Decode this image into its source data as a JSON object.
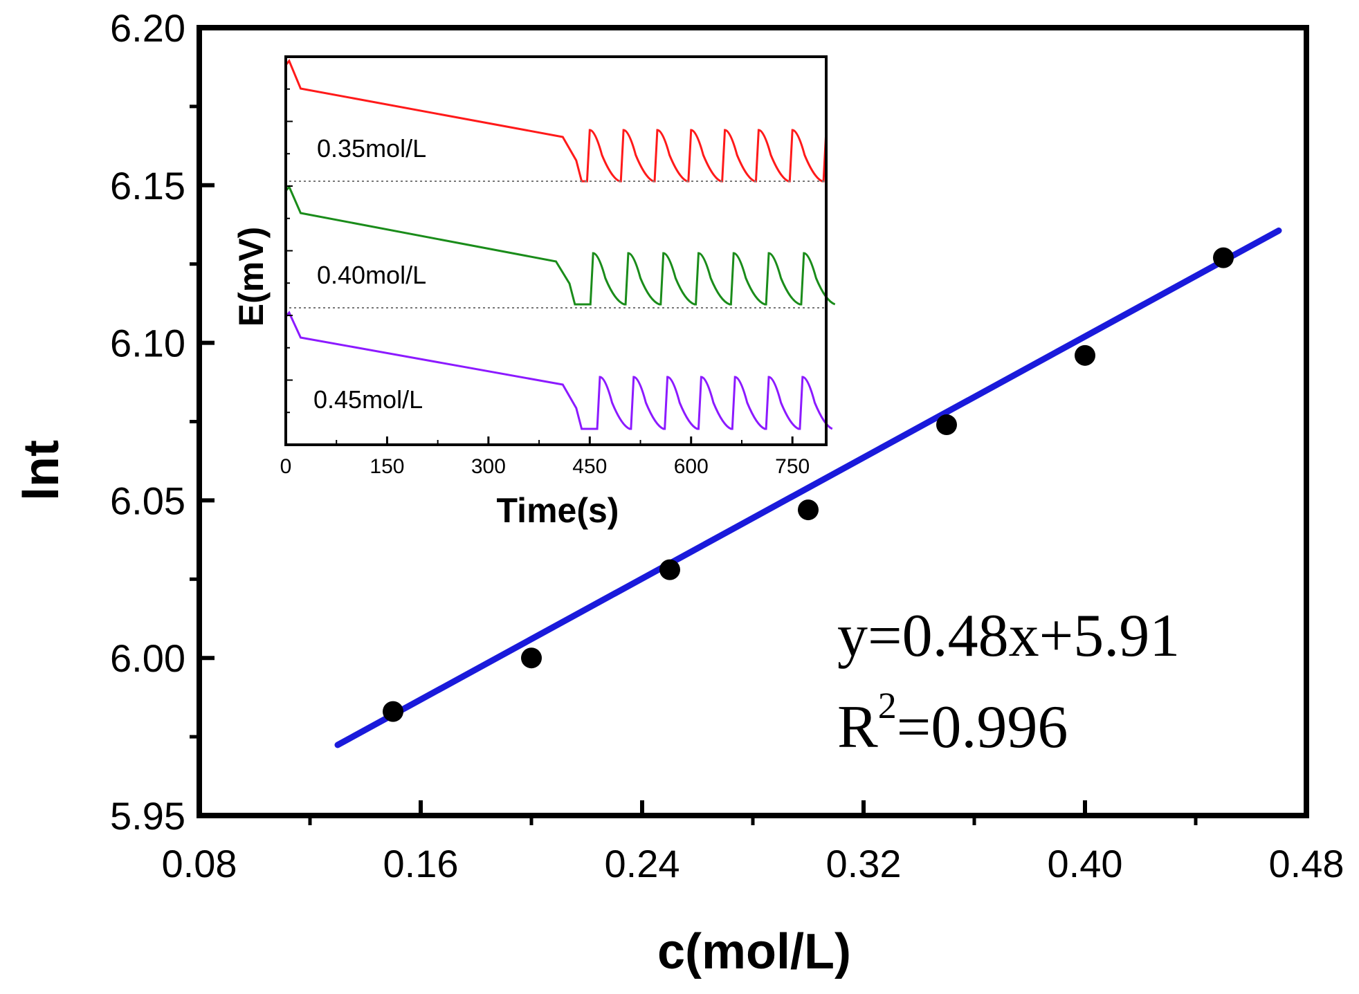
{
  "chart_data": [
    {
      "type": "scatter",
      "xlabel": "c(mol/L)",
      "ylabel": "lnt",
      "xlim": [
        0.08,
        0.48
      ],
      "ylim": [
        5.95,
        6.2
      ],
      "xticks": [
        "0.08",
        "0.16",
        "0.24",
        "0.32",
        "0.40",
        "0.48"
      ],
      "yticks": [
        "5.95",
        "6.00",
        "6.05",
        "6.10",
        "6.15",
        "6.20"
      ],
      "points": {
        "x": [
          0.15,
          0.2,
          0.25,
          0.3,
          0.35,
          0.4,
          0.45
        ],
        "y": [
          5.983,
          6.0,
          6.028,
          6.047,
          6.074,
          6.096,
          6.127
        ]
      },
      "fit": {
        "slope": 0.48,
        "intercept": 5.91,
        "x_range": [
          0.13,
          0.47
        ],
        "color": "#1a1adb"
      },
      "annotations": {
        "equation": "y=0.48x+5.91",
        "r2_prefix": "R",
        "r2_sup": "2",
        "r2_value": "=0.996"
      },
      "point_color": "#000000"
    },
    {
      "type": "line",
      "inset": true,
      "xlabel": "Time(s)",
      "ylabel": "E(mV)",
      "xlim": [
        0,
        800
      ],
      "xticks": [
        "0",
        "150",
        "300",
        "450",
        "600",
        "750"
      ],
      "series": [
        {
          "name": "0.35mol/L",
          "color": "#ff1a1a",
          "onset": 430,
          "first_peak": 450,
          "period": 50
        },
        {
          "name": "0.40mol/L",
          "color": "#1a8c1a",
          "onset": 420,
          "first_peak": 455,
          "period": 52
        },
        {
          "name": "0.45mol/L",
          "color": "#8c1aff",
          "onset": 430,
          "first_peak": 465,
          "period": 50
        }
      ]
    }
  ]
}
